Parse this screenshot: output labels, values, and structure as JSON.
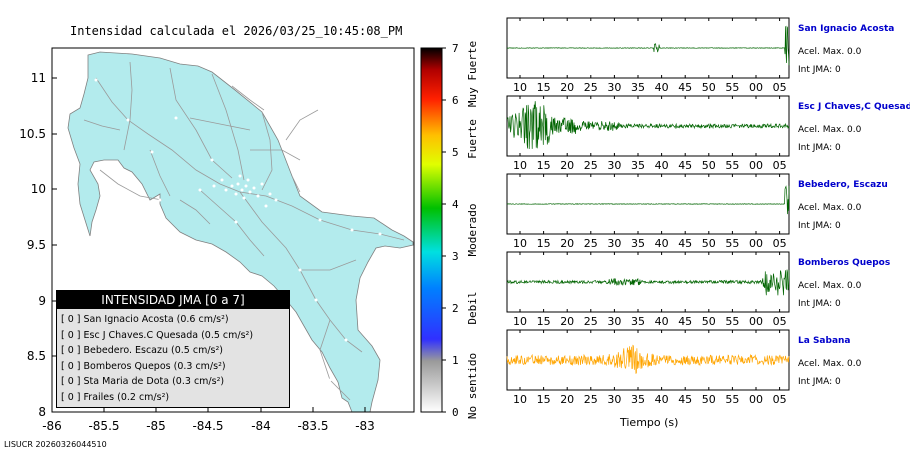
{
  "map": {
    "title": "Intensidad calculada el 2026/03/25_10:45:08_PM",
    "y_ticks": [
      "11",
      "10.5",
      "10",
      "9.5",
      "9",
      "8.5",
      "8"
    ],
    "x_ticks": [
      "-86",
      "-85.5",
      "-85",
      "-84.5",
      "-84",
      "-83.5",
      "-83"
    ],
    "land_color": "#b3ebed",
    "road_color": "#9a9a9a"
  },
  "colorbar": {
    "ticks": [
      "0",
      "1",
      "2",
      "3",
      "4",
      "5",
      "6",
      "7"
    ],
    "labels": [
      "No sentido",
      "Debil",
      "Moderado",
      "Fuerte",
      "Muy Fuerte"
    ]
  },
  "legend": {
    "title": "INTENSIDAD JMA [0 a 7]",
    "items": [
      "[ 0 ]  San Ignacio Acosta (0.6 cm/s²)",
      "[ 0 ]  Esc J Chaves.C Quesada (0.5 cm/s²)",
      "[ 0 ]  Bebedero. Escazu (0.5 cm/s²)",
      "[ 0 ]  Bomberos Quepos (0.3 cm/s²)",
      "[ 0 ]  Sta Maria de Dota (0.3 cm/s²)",
      "[ 0 ]  Frailes (0.2 cm/s²)"
    ]
  },
  "stations": [
    {
      "name": "San Ignacio Acosta",
      "accel": "Acel. Max. 0.0",
      "jma": "Int JMA: 0",
      "color": "#006400"
    },
    {
      "name": "Esc J Chaves,C Quesada",
      "accel": "Acel. Max. 0.0",
      "jma": "Int JMA: 0",
      "color": "#006400"
    },
    {
      "name": "Bebedero, Escazu",
      "accel": "Acel. Max. 0.0",
      "jma": "Int JMA: 0",
      "color": "#006400"
    },
    {
      "name": "Bomberos Quepos",
      "accel": "Acel. Max. 0.0",
      "jma": "Int JMA: 0",
      "color": "#006400"
    },
    {
      "name": "La Sabana",
      "accel": "Acel. Max. 0.0",
      "jma": "Int JMA: 0",
      "color": "#ffa500"
    }
  ],
  "time_ticks": [
    "10",
    "15",
    "20",
    "25",
    "30",
    "35",
    "40",
    "45",
    "50",
    "55",
    "00",
    "05"
  ],
  "time_label": "Tiempo (s)",
  "footer": "LISUCR 20260326044510"
}
